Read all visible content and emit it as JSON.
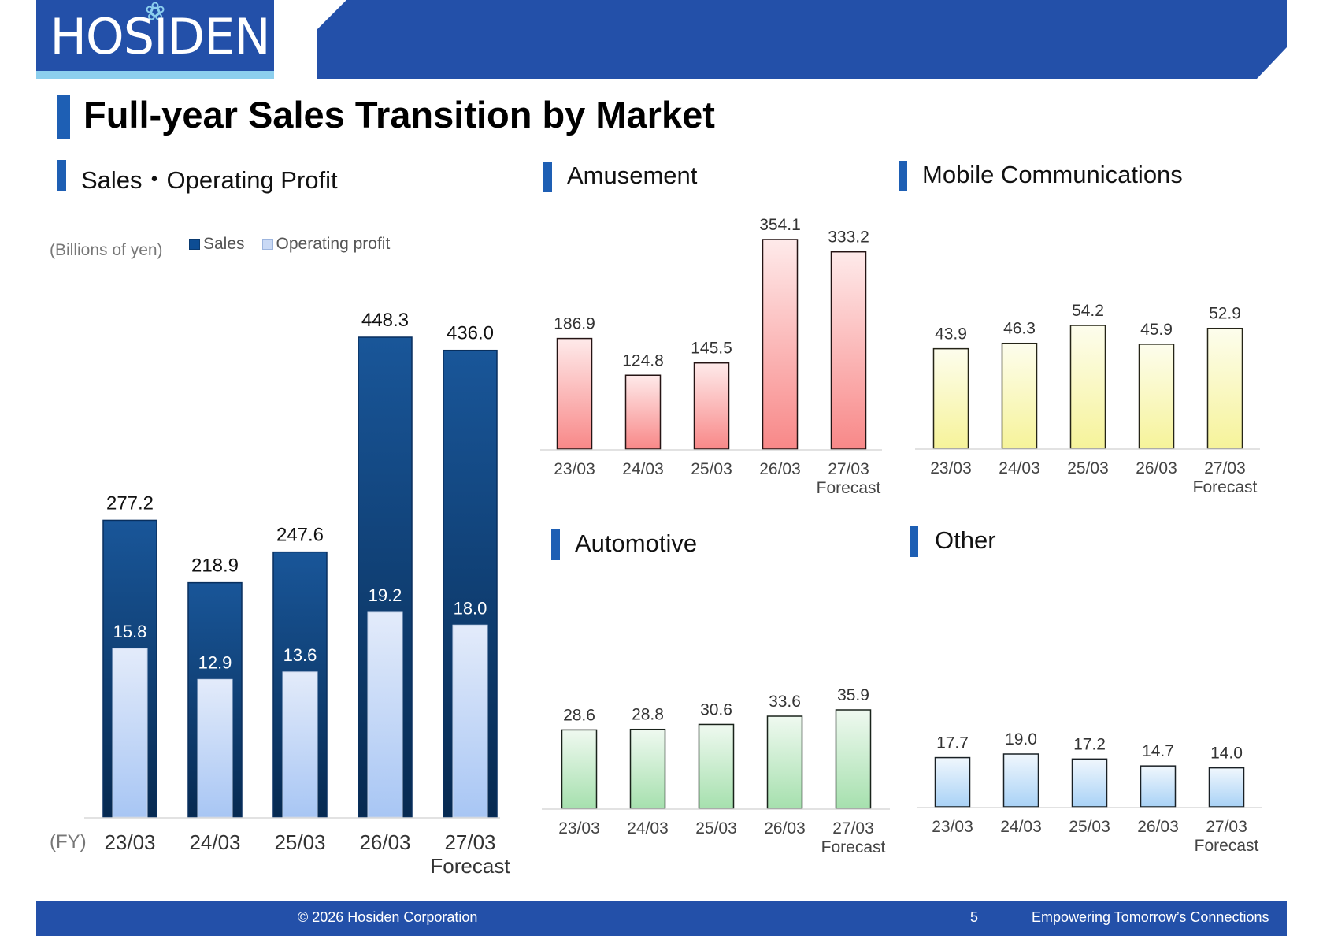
{
  "brand": {
    "logo_text": "HOSIDEN",
    "accent": "#2350a9",
    "stripe": "#8ccfee"
  },
  "page_title": "Full-year Sales Transition by Market",
  "panels": {
    "main": {
      "title": "Sales・Operating Profit",
      "unit": "(Billions of yen)",
      "legend": [
        "Sales",
        "Operating profit"
      ],
      "fy_label": "(FY)"
    },
    "amusement": {
      "title": "Amusement"
    },
    "mobile": {
      "title": "Mobile Communications"
    },
    "automotive": {
      "title": "Automotive"
    },
    "other": {
      "title": "Other"
    }
  },
  "chart_data": [
    {
      "id": "main",
      "type": "bar",
      "title": "Sales・Operating Profit",
      "categories": [
        "23/03",
        "24/03",
        "25/03",
        "26/03",
        "27/03\nForecast"
      ],
      "series": [
        {
          "name": "Sales",
          "values": [
            277.2,
            218.9,
            247.6,
            448.3,
            436.0
          ],
          "color": "#0d4d94"
        },
        {
          "name": "Operating profit",
          "values": [
            15.8,
            12.9,
            13.6,
            19.2,
            18.0
          ],
          "color": "#a8c6f4"
        }
      ],
      "legend_placement": "top-left"
    },
    {
      "id": "amusement",
      "type": "bar",
      "title": "Amusement",
      "categories": [
        "23/03",
        "24/03",
        "25/03",
        "26/03",
        "27/03\nForecast"
      ],
      "values": [
        186.9,
        124.8,
        145.5,
        354.1,
        333.2
      ],
      "color": "#f88888"
    },
    {
      "id": "mobile",
      "type": "bar",
      "title": "Mobile Communications",
      "categories": [
        "23/03",
        "24/03",
        "25/03",
        "26/03",
        "27/03\nForecast"
      ],
      "values": [
        43.9,
        46.3,
        54.2,
        45.9,
        52.9
      ],
      "color": "#f6f39a"
    },
    {
      "id": "automotive",
      "type": "bar",
      "title": "Automotive",
      "categories": [
        "23/03",
        "24/03",
        "25/03",
        "26/03",
        "27/03\nForecast"
      ],
      "values": [
        28.6,
        28.8,
        30.6,
        33.6,
        35.9
      ],
      "color": "#a6e0ae"
    },
    {
      "id": "other",
      "type": "bar",
      "title": "Other",
      "categories": [
        "23/03",
        "24/03",
        "25/03",
        "26/03",
        "27/03\nForecast"
      ],
      "values": [
        17.7,
        19.0,
        17.2,
        14.7,
        14.0
      ],
      "color": "#a9d2f6"
    }
  ],
  "footer": {
    "copyright": "© 2026 Hosiden Corporation",
    "page_number": "5",
    "tagline": "Empowering Tomorrow’s Connections"
  }
}
